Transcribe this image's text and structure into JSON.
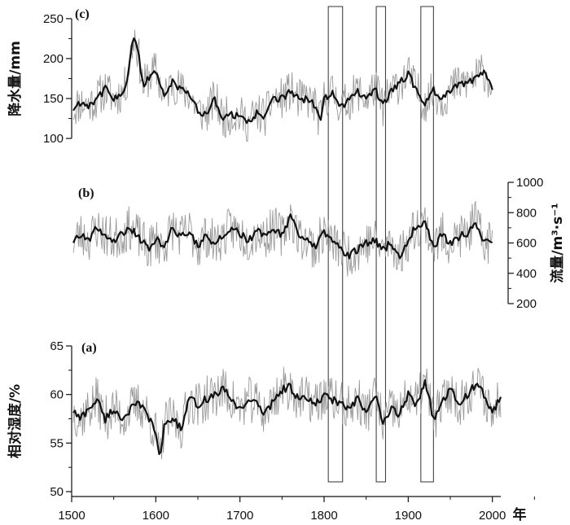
{
  "chart_data": {
    "type": "line",
    "x_axis": {
      "range": [
        1500,
        2010
      ],
      "ticks": [
        1500,
        1600,
        1700,
        1800,
        1900,
        2000
      ],
      "tick_labels": [
        "1500",
        "1600",
        "1700",
        "1800",
        "1900",
        "2000"
      ],
      "unit": "年"
    },
    "highlight_intervals": [
      [
        1805,
        1822
      ],
      [
        1862,
        1873
      ],
      [
        1915,
        1930
      ]
    ],
    "panels": [
      {
        "tag": "(c)",
        "ylabel": "降水量/mm",
        "axis_side": "left",
        "ylim": [
          95,
          255
        ],
        "ticks": [
          100,
          150,
          200,
          250
        ],
        "tick_labels": [
          "100",
          "150",
          "200",
          "250"
        ],
        "series": [
          {
            "style": "raw-thin-gray",
            "color": "#9a9a9a",
            "noise": 26,
            "seed": 11
          },
          {
            "style": "smoothed-thick-black",
            "color": "#111111",
            "x": [
              1500,
              1510,
              1520,
              1530,
              1540,
              1550,
              1560,
              1565,
              1570,
              1575,
              1580,
              1585,
              1590,
              1600,
              1610,
              1620,
              1630,
              1640,
              1650,
              1660,
              1670,
              1680,
              1690,
              1700,
              1710,
              1720,
              1730,
              1740,
              1750,
              1760,
              1770,
              1780,
              1790,
              1795,
              1800,
              1810,
              1820,
              1830,
              1840,
              1850,
              1860,
              1870,
              1880,
              1890,
              1900,
              1910,
              1920,
              1930,
              1940,
              1950,
              1960,
              1970,
              1980,
              1990,
              2000
            ],
            "y": [
              135,
              145,
              142,
              150,
              162,
              150,
              158,
              168,
              205,
              230,
              200,
              165,
              175,
              185,
              150,
              172,
              160,
              155,
              135,
              130,
              150,
              125,
              130,
              128,
              120,
              132,
              128,
              150,
              150,
              160,
              148,
              150,
              140,
              120,
              150,
              158,
              140,
              148,
              160,
              148,
              165,
              140,
              160,
              170,
              180,
              160,
              145,
              160,
              148,
              160,
              168,
              170,
              175,
              185,
              165
            ]
          }
        ]
      },
      {
        "tag": "(b)",
        "ylabel": "流量/m³·s⁻¹",
        "axis_side": "right",
        "ylim": [
          200,
          1000
        ],
        "ticks": [
          200,
          400,
          600,
          800,
          1000
        ],
        "tick_labels": [
          "200",
          "400",
          "600",
          "800",
          "1000"
        ],
        "series": [
          {
            "style": "raw-thin-gray",
            "color": "#9a9a9a",
            "noise": 150,
            "seed": 23
          },
          {
            "style": "smoothed-thick-black",
            "color": "#111111",
            "x": [
              1500,
              1510,
              1520,
              1530,
              1540,
              1550,
              1560,
              1570,
              1580,
              1590,
              1600,
              1610,
              1620,
              1630,
              1640,
              1650,
              1660,
              1670,
              1680,
              1690,
              1700,
              1710,
              1720,
              1730,
              1740,
              1750,
              1760,
              1770,
              1780,
              1790,
              1800,
              1810,
              1820,
              1830,
              1840,
              1850,
              1860,
              1870,
              1880,
              1890,
              1900,
              1910,
              1920,
              1930,
              1940,
              1950,
              1960,
              1970,
              1980,
              1990,
              2000
            ],
            "y": [
              600,
              660,
              620,
              700,
              650,
              620,
              660,
              700,
              640,
              560,
              620,
              580,
              700,
              640,
              680,
              580,
              650,
              600,
              640,
              700,
              660,
              620,
              680,
              640,
              700,
              650,
              780,
              640,
              620,
              560,
              680,
              600,
              560,
              520,
              560,
              600,
              620,
              560,
              600,
              520,
              620,
              720,
              740,
              560,
              660,
              600,
              640,
              660,
              740,
              600,
              620
            ]
          }
        ]
      },
      {
        "tag": "(a)",
        "ylabel": "相对湿度/%",
        "axis_side": "left",
        "ylim": [
          50,
          65
        ],
        "ticks": [
          50,
          55,
          60,
          65
        ],
        "tick_labels": [
          "50",
          "55",
          "60",
          "65"
        ],
        "series": [
          {
            "style": "raw-thin-gray",
            "color": "#9a9a9a",
            "noise": 2.4,
            "seed": 37
          },
          {
            "style": "smoothed-thick-black",
            "color": "#111111",
            "x": [
              1500,
              1510,
              1520,
              1530,
              1540,
              1550,
              1560,
              1570,
              1580,
              1590,
              1600,
              1605,
              1610,
              1620,
              1630,
              1640,
              1650,
              1660,
              1670,
              1680,
              1690,
              1700,
              1710,
              1720,
              1730,
              1740,
              1750,
              1760,
              1770,
              1780,
              1790,
              1800,
              1810,
              1820,
              1830,
              1840,
              1850,
              1860,
              1870,
              1880,
              1890,
              1900,
              1910,
              1920,
              1930,
              1940,
              1950,
              1960,
              1970,
              1980,
              1990,
              2000,
              2010
            ],
            "y": [
              58.5,
              57.5,
              58.5,
              59.5,
              57.5,
              58.5,
              57.5,
              58.5,
              59,
              58,
              56,
              53,
              57,
              57.5,
              56.5,
              59.5,
              59,
              59.5,
              60,
              60.5,
              59.5,
              58.5,
              59.5,
              59,
              58,
              59.5,
              60.5,
              60.8,
              59.5,
              59.5,
              59,
              59.8,
              59.5,
              59,
              58.5,
              59.5,
              58,
              60,
              57,
              58.5,
              58,
              60,
              59,
              61.5,
              57.5,
              59,
              60.5,
              59,
              60,
              61,
              60,
              58,
              60
            ]
          }
        ]
      }
    ]
  }
}
